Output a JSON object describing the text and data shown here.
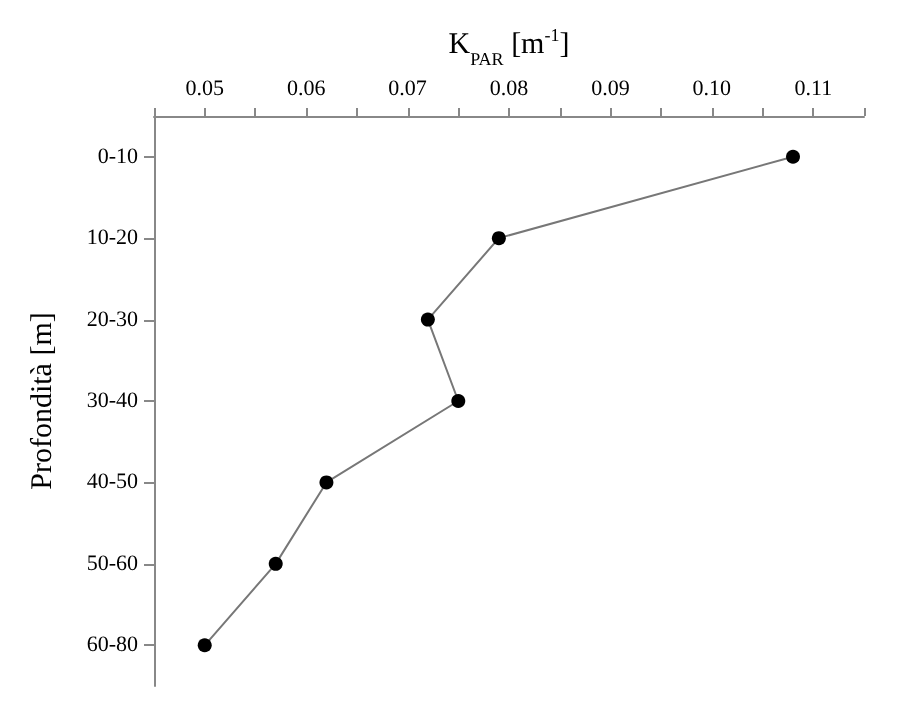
{
  "chart_data": {
    "type": "line",
    "xlabel": "K$_{PAR}$ [m$^{-1}$]",
    "ylabel": "Profondità [m]",
    "categories": [
      "0-10",
      "10-20",
      "20-30",
      "30-40",
      "40-50",
      "50-60",
      "60-80"
    ],
    "orientation": "horizontal",
    "series": [
      {
        "color": "#000000",
        "values": [
          0.108,
          0.079,
          0.072,
          0.075,
          0.062,
          0.057,
          0.05
        ]
      }
    ],
    "xlim": [
      0.045,
      0.115
    ],
    "xticks": [
      {
        "value": 0.045,
        "label": null
      },
      0.05,
      {
        "value": 0.055,
        "label": null
      },
      0.06,
      {
        "value": 0.065,
        "label": null
      },
      0.07,
      {
        "value": 0.075,
        "label": null
      },
      0.08,
      {
        "value": 0.085,
        "label": null
      },
      0.09,
      {
        "value": 0.095,
        "label": null
      },
      {
        "value": 0.1,
        "label": "0.10"
      },
      {
        "value": 0.105,
        "label": null
      },
      0.11,
      {
        "value": 0.115,
        "label": null
      }
    ],
    "marker": "circle",
    "line_style": "solid",
    "grid": false
  }
}
